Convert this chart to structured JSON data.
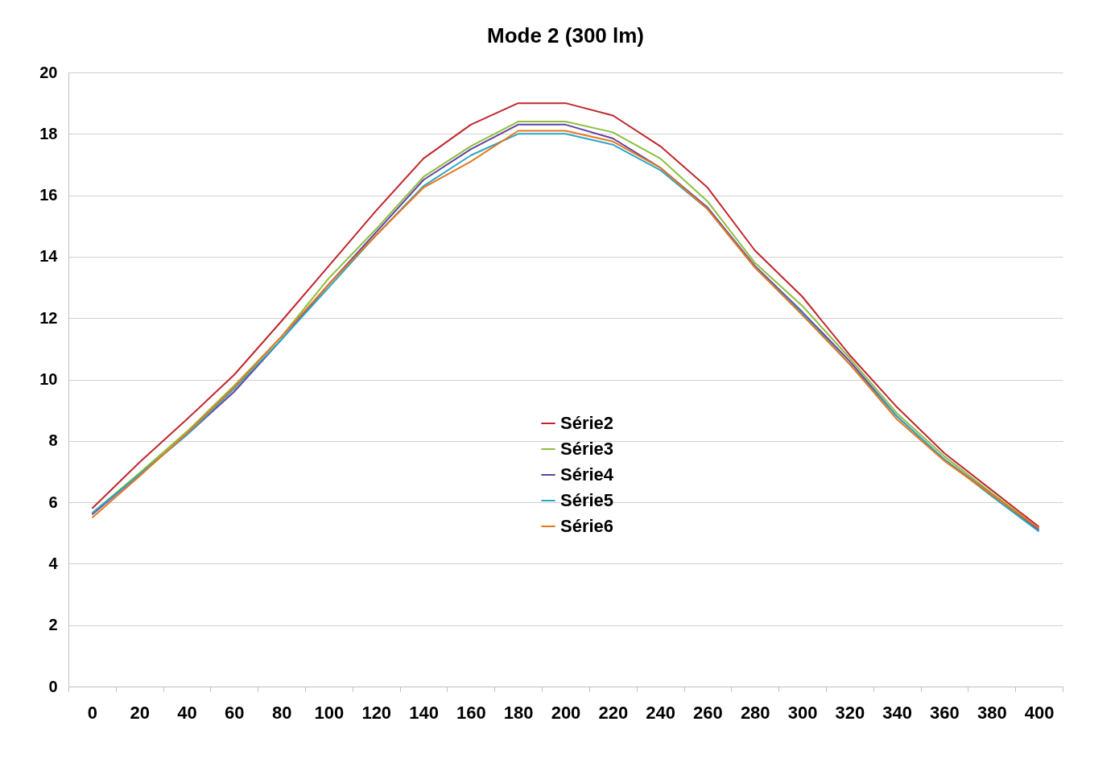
{
  "chart_data": {
    "type": "line",
    "title": "Mode 2 (300 lm)",
    "categories": [
      "0",
      "20",
      "40",
      "60",
      "80",
      "100",
      "120",
      "140",
      "160",
      "180",
      "200",
      "220",
      "240",
      "260",
      "280",
      "300",
      "320",
      "340",
      "360",
      "380",
      "400"
    ],
    "ylim": [
      0,
      20
    ],
    "yticks": [
      0,
      2,
      4,
      6,
      8,
      10,
      12,
      14,
      16,
      18,
      20
    ],
    "grid": "y",
    "legend": "center",
    "marker": "none",
    "series": [
      {
        "name": "Série2",
        "color": "#c0272d",
        "values": [
          5.8,
          7.3,
          8.7,
          10.15,
          11.9,
          13.7,
          15.5,
          17.2,
          18.3,
          19.0,
          19.0,
          18.6,
          17.6,
          16.25,
          14.2,
          12.7,
          10.8,
          9.1,
          7.6,
          6.4,
          5.2
        ]
      },
      {
        "name": "Série3",
        "color": "#8cbf3f",
        "values": [
          5.65,
          6.95,
          8.3,
          9.8,
          11.4,
          13.3,
          14.9,
          16.6,
          17.6,
          18.4,
          18.4,
          18.05,
          17.2,
          15.8,
          13.8,
          12.4,
          10.7,
          8.9,
          7.5,
          6.3,
          5.15
        ]
      },
      {
        "name": "Série4",
        "color": "#6440a0",
        "values": [
          5.6,
          6.9,
          8.2,
          9.6,
          11.3,
          13.1,
          14.8,
          16.5,
          17.5,
          18.3,
          18.3,
          17.85,
          16.9,
          15.6,
          13.7,
          12.2,
          10.6,
          8.8,
          7.4,
          6.25,
          5.1
        ]
      },
      {
        "name": "Série5",
        "color": "#2aa8c8",
        "values": [
          5.65,
          6.9,
          8.2,
          9.7,
          11.3,
          13.0,
          14.7,
          16.3,
          17.3,
          18.0,
          18.0,
          17.65,
          16.82,
          15.55,
          13.65,
          12.15,
          10.5,
          8.8,
          7.4,
          6.2,
          5.05
        ]
      },
      {
        "name": "Série6",
        "color": "#e8761c",
        "values": [
          5.5,
          6.85,
          8.25,
          9.75,
          11.4,
          13.1,
          14.7,
          16.25,
          17.1,
          18.1,
          18.1,
          17.75,
          16.9,
          15.55,
          13.65,
          12.1,
          10.5,
          8.7,
          7.35,
          6.25,
          5.15
        ]
      }
    ]
  }
}
